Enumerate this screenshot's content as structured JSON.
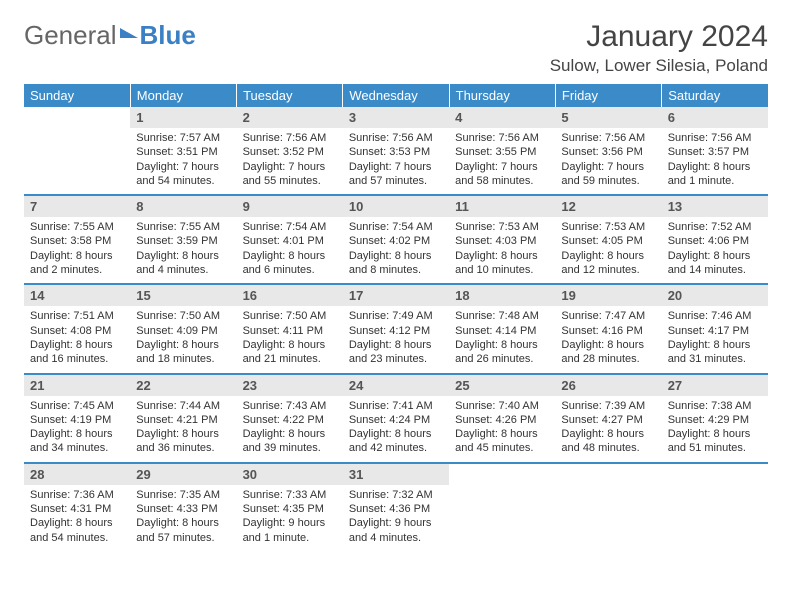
{
  "brand": {
    "part1": "General",
    "part2": "Blue"
  },
  "title": "January 2024",
  "location": "Sulow, Lower Silesia, Poland",
  "colors": {
    "header_bg": "#3b8bc9",
    "header_text": "#ffffff",
    "daynum_bg": "#e8e8e8",
    "row_divider": "#3b8bc9",
    "brand_blue": "#3b7fc4",
    "text": "#333333",
    "page_bg": "#ffffff"
  },
  "typography": {
    "title_fontsize": 30,
    "location_fontsize": 17,
    "weekday_fontsize": 13,
    "daynum_fontsize": 13,
    "details_fontsize": 11
  },
  "weekdays": [
    "Sunday",
    "Monday",
    "Tuesday",
    "Wednesday",
    "Thursday",
    "Friday",
    "Saturday"
  ],
  "weeks": [
    [
      {
        "blank": true
      },
      {
        "n": "1",
        "sunrise": "7:57 AM",
        "sunset": "3:51 PM",
        "daylight": "7 hours and 54 minutes."
      },
      {
        "n": "2",
        "sunrise": "7:56 AM",
        "sunset": "3:52 PM",
        "daylight": "7 hours and 55 minutes."
      },
      {
        "n": "3",
        "sunrise": "7:56 AM",
        "sunset": "3:53 PM",
        "daylight": "7 hours and 57 minutes."
      },
      {
        "n": "4",
        "sunrise": "7:56 AM",
        "sunset": "3:55 PM",
        "daylight": "7 hours and 58 minutes."
      },
      {
        "n": "5",
        "sunrise": "7:56 AM",
        "sunset": "3:56 PM",
        "daylight": "7 hours and 59 minutes."
      },
      {
        "n": "6",
        "sunrise": "7:56 AM",
        "sunset": "3:57 PM",
        "daylight": "8 hours and 1 minute."
      }
    ],
    [
      {
        "n": "7",
        "sunrise": "7:55 AM",
        "sunset": "3:58 PM",
        "daylight": "8 hours and 2 minutes."
      },
      {
        "n": "8",
        "sunrise": "7:55 AM",
        "sunset": "3:59 PM",
        "daylight": "8 hours and 4 minutes."
      },
      {
        "n": "9",
        "sunrise": "7:54 AM",
        "sunset": "4:01 PM",
        "daylight": "8 hours and 6 minutes."
      },
      {
        "n": "10",
        "sunrise": "7:54 AM",
        "sunset": "4:02 PM",
        "daylight": "8 hours and 8 minutes."
      },
      {
        "n": "11",
        "sunrise": "7:53 AM",
        "sunset": "4:03 PM",
        "daylight": "8 hours and 10 minutes."
      },
      {
        "n": "12",
        "sunrise": "7:53 AM",
        "sunset": "4:05 PM",
        "daylight": "8 hours and 12 minutes."
      },
      {
        "n": "13",
        "sunrise": "7:52 AM",
        "sunset": "4:06 PM",
        "daylight": "8 hours and 14 minutes."
      }
    ],
    [
      {
        "n": "14",
        "sunrise": "7:51 AM",
        "sunset": "4:08 PM",
        "daylight": "8 hours and 16 minutes."
      },
      {
        "n": "15",
        "sunrise": "7:50 AM",
        "sunset": "4:09 PM",
        "daylight": "8 hours and 18 minutes."
      },
      {
        "n": "16",
        "sunrise": "7:50 AM",
        "sunset": "4:11 PM",
        "daylight": "8 hours and 21 minutes."
      },
      {
        "n": "17",
        "sunrise": "7:49 AM",
        "sunset": "4:12 PM",
        "daylight": "8 hours and 23 minutes."
      },
      {
        "n": "18",
        "sunrise": "7:48 AM",
        "sunset": "4:14 PM",
        "daylight": "8 hours and 26 minutes."
      },
      {
        "n": "19",
        "sunrise": "7:47 AM",
        "sunset": "4:16 PM",
        "daylight": "8 hours and 28 minutes."
      },
      {
        "n": "20",
        "sunrise": "7:46 AM",
        "sunset": "4:17 PM",
        "daylight": "8 hours and 31 minutes."
      }
    ],
    [
      {
        "n": "21",
        "sunrise": "7:45 AM",
        "sunset": "4:19 PM",
        "daylight": "8 hours and 34 minutes."
      },
      {
        "n": "22",
        "sunrise": "7:44 AM",
        "sunset": "4:21 PM",
        "daylight": "8 hours and 36 minutes."
      },
      {
        "n": "23",
        "sunrise": "7:43 AM",
        "sunset": "4:22 PM",
        "daylight": "8 hours and 39 minutes."
      },
      {
        "n": "24",
        "sunrise": "7:41 AM",
        "sunset": "4:24 PM",
        "daylight": "8 hours and 42 minutes."
      },
      {
        "n": "25",
        "sunrise": "7:40 AM",
        "sunset": "4:26 PM",
        "daylight": "8 hours and 45 minutes."
      },
      {
        "n": "26",
        "sunrise": "7:39 AM",
        "sunset": "4:27 PM",
        "daylight": "8 hours and 48 minutes."
      },
      {
        "n": "27",
        "sunrise": "7:38 AM",
        "sunset": "4:29 PM",
        "daylight": "8 hours and 51 minutes."
      }
    ],
    [
      {
        "n": "28",
        "sunrise": "7:36 AM",
        "sunset": "4:31 PM",
        "daylight": "8 hours and 54 minutes."
      },
      {
        "n": "29",
        "sunrise": "7:35 AM",
        "sunset": "4:33 PM",
        "daylight": "8 hours and 57 minutes."
      },
      {
        "n": "30",
        "sunrise": "7:33 AM",
        "sunset": "4:35 PM",
        "daylight": "9 hours and 1 minute."
      },
      {
        "n": "31",
        "sunrise": "7:32 AM",
        "sunset": "4:36 PM",
        "daylight": "9 hours and 4 minutes."
      },
      {
        "blank": true
      },
      {
        "blank": true
      },
      {
        "blank": true
      }
    ]
  ],
  "labels": {
    "sunrise": "Sunrise:",
    "sunset": "Sunset:",
    "daylight": "Daylight:"
  }
}
